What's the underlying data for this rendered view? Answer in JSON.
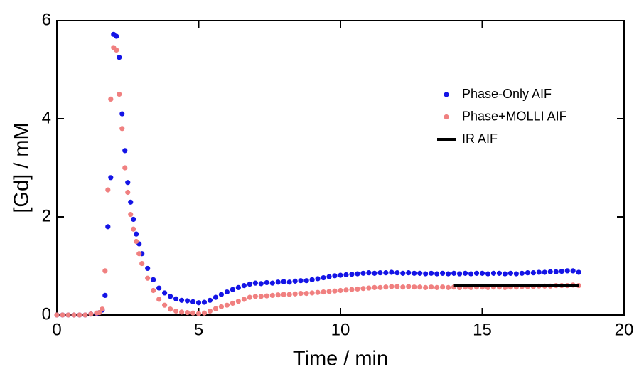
{
  "chart_data": {
    "type": "scatter",
    "xlabel": "Time / min",
    "ylabel": "[Gd] / mM",
    "xlim": [
      0,
      20
    ],
    "xticks": [
      0,
      5,
      10,
      15,
      20
    ],
    "ylim": [
      0,
      6
    ],
    "yticks": [
      0,
      2,
      4,
      6
    ],
    "grid": false,
    "legend": "upper right",
    "x": [
      0,
      0.2,
      0.4,
      0.6,
      0.8,
      1,
      1.2,
      1.4,
      1.5,
      1.6,
      1.7,
      1.8,
      1.9,
      2,
      2.1,
      2.2,
      2.3,
      2.4,
      2.5,
      2.6,
      2.7,
      2.8,
      2.9,
      3,
      3.2,
      3.4,
      3.6,
      3.8,
      4,
      4.2,
      4.4,
      4.6,
      4.8,
      5,
      5.2,
      5.4,
      5.6,
      5.8,
      6,
      6.2,
      6.4,
      6.6,
      6.8,
      7,
      7.2,
      7.4,
      7.6,
      7.8,
      8,
      8.2,
      8.4,
      8.6,
      8.8,
      9,
      9.2,
      9.4,
      9.6,
      9.8,
      10,
      10.2,
      10.4,
      10.6,
      10.8,
      11,
      11.2,
      11.4,
      11.6,
      11.8,
      12,
      12.2,
      12.4,
      12.6,
      12.8,
      13,
      13.2,
      13.4,
      13.6,
      13.8,
      14,
      14.2,
      14.4,
      14.6,
      14.8,
      15,
      15.2,
      15.4,
      15.6,
      15.8,
      16,
      16.2,
      16.4,
      16.6,
      16.8,
      17,
      17.2,
      17.4,
      17.6,
      17.8,
      18,
      18.2,
      18.4
    ],
    "series": [
      {
        "name": "Phase-Only AIF",
        "color": "#1414e6",
        "style": "dots",
        "values": [
          0,
          0,
          0,
          0,
          0,
          0,
          0.02,
          0.03,
          0.05,
          0.1,
          0.4,
          1.8,
          2.8,
          5.72,
          5.68,
          5.25,
          4.1,
          3.35,
          2.7,
          2.3,
          1.95,
          1.65,
          1.45,
          1.25,
          0.95,
          0.72,
          0.55,
          0.45,
          0.38,
          0.33,
          0.3,
          0.29,
          0.27,
          0.25,
          0.26,
          0.3,
          0.36,
          0.42,
          0.47,
          0.52,
          0.56,
          0.6,
          0.63,
          0.65,
          0.64,
          0.66,
          0.65,
          0.67,
          0.68,
          0.67,
          0.69,
          0.7,
          0.7,
          0.72,
          0.74,
          0.76,
          0.78,
          0.8,
          0.81,
          0.82,
          0.83,
          0.84,
          0.85,
          0.86,
          0.85,
          0.86,
          0.86,
          0.87,
          0.86,
          0.85,
          0.86,
          0.85,
          0.85,
          0.84,
          0.85,
          0.84,
          0.85,
          0.84,
          0.85,
          0.84,
          0.85,
          0.84,
          0.85,
          0.85,
          0.84,
          0.85,
          0.85,
          0.84,
          0.85,
          0.84,
          0.85,
          0.86,
          0.86,
          0.87,
          0.87,
          0.88,
          0.88,
          0.89,
          0.9,
          0.9,
          0.87
        ]
      },
      {
        "name": "Phase+MOLLI AIF",
        "color": "#f08080",
        "style": "dots",
        "values": [
          0,
          0,
          0,
          0,
          0,
          0,
          0.02,
          0.04,
          0.05,
          0.12,
          0.9,
          2.55,
          4.4,
          5.45,
          5.4,
          4.5,
          3.8,
          3.0,
          2.5,
          2.05,
          1.75,
          1.5,
          1.25,
          1.05,
          0.75,
          0.5,
          0.32,
          0.2,
          0.12,
          0.08,
          0.06,
          0.05,
          0.04,
          0.03,
          0.04,
          0.08,
          0.13,
          0.17,
          0.2,
          0.24,
          0.28,
          0.32,
          0.36,
          0.38,
          0.38,
          0.39,
          0.4,
          0.41,
          0.42,
          0.42,
          0.43,
          0.44,
          0.44,
          0.45,
          0.46,
          0.47,
          0.48,
          0.49,
          0.5,
          0.51,
          0.52,
          0.53,
          0.54,
          0.55,
          0.56,
          0.56,
          0.57,
          0.58,
          0.58,
          0.57,
          0.58,
          0.57,
          0.57,
          0.56,
          0.57,
          0.56,
          0.57,
          0.56,
          0.57,
          0.56,
          0.57,
          0.56,
          0.57,
          0.57,
          0.56,
          0.57,
          0.57,
          0.56,
          0.57,
          0.57,
          0.58,
          0.58,
          0.58,
          0.59,
          0.59,
          0.59,
          0.6,
          0.6,
          0.6,
          0.61,
          0.6
        ]
      },
      {
        "name": "IR AIF",
        "color": "#000000",
        "style": "line",
        "x": [
          14,
          18.4
        ],
        "values": [
          0.6,
          0.6
        ]
      }
    ]
  }
}
